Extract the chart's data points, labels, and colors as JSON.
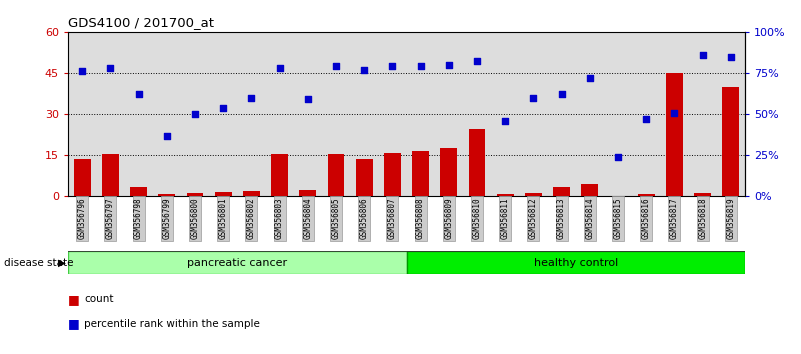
{
  "title": "GDS4100 / 201700_at",
  "samples": [
    "GSM356796",
    "GSM356797",
    "GSM356798",
    "GSM356799",
    "GSM356800",
    "GSM356801",
    "GSM356802",
    "GSM356803",
    "GSM356804",
    "GSM356805",
    "GSM356806",
    "GSM356807",
    "GSM356808",
    "GSM356809",
    "GSM356810",
    "GSM356811",
    "GSM356812",
    "GSM356813",
    "GSM356814",
    "GSM356815",
    "GSM356816",
    "GSM356817",
    "GSM356818",
    "GSM356819"
  ],
  "counts": [
    13.5,
    15.5,
    3.5,
    0.8,
    1.2,
    1.5,
    2.0,
    15.5,
    2.5,
    15.5,
    13.5,
    16.0,
    16.5,
    17.5,
    24.5,
    0.8,
    1.2,
    3.5,
    4.5,
    0.2,
    1.0,
    45.0,
    1.2,
    40.0
  ],
  "percentiles": [
    76.0,
    78.0,
    62.0,
    37.0,
    50.0,
    54.0,
    60.0,
    78.0,
    59.0,
    79.0,
    77.0,
    79.0,
    79.0,
    80.0,
    82.0,
    46.0,
    60.0,
    62.0,
    72.0,
    24.0,
    47.0,
    51.0,
    86.0,
    85.0
  ],
  "bar_color": "#CC0000",
  "dot_color": "#0000CC",
  "ylim_left": [
    0,
    60
  ],
  "yticks_left": [
    0,
    15,
    30,
    45,
    60
  ],
  "ytick_labels_left": [
    "0",
    "15",
    "30",
    "45",
    "60"
  ],
  "ytick_labels_right": [
    "0%",
    "25%",
    "50%",
    "75%",
    "100%"
  ],
  "grid_values": [
    15,
    30,
    45
  ],
  "bg_color": "#FFFFFF",
  "plot_bg": "#DDDDDD"
}
